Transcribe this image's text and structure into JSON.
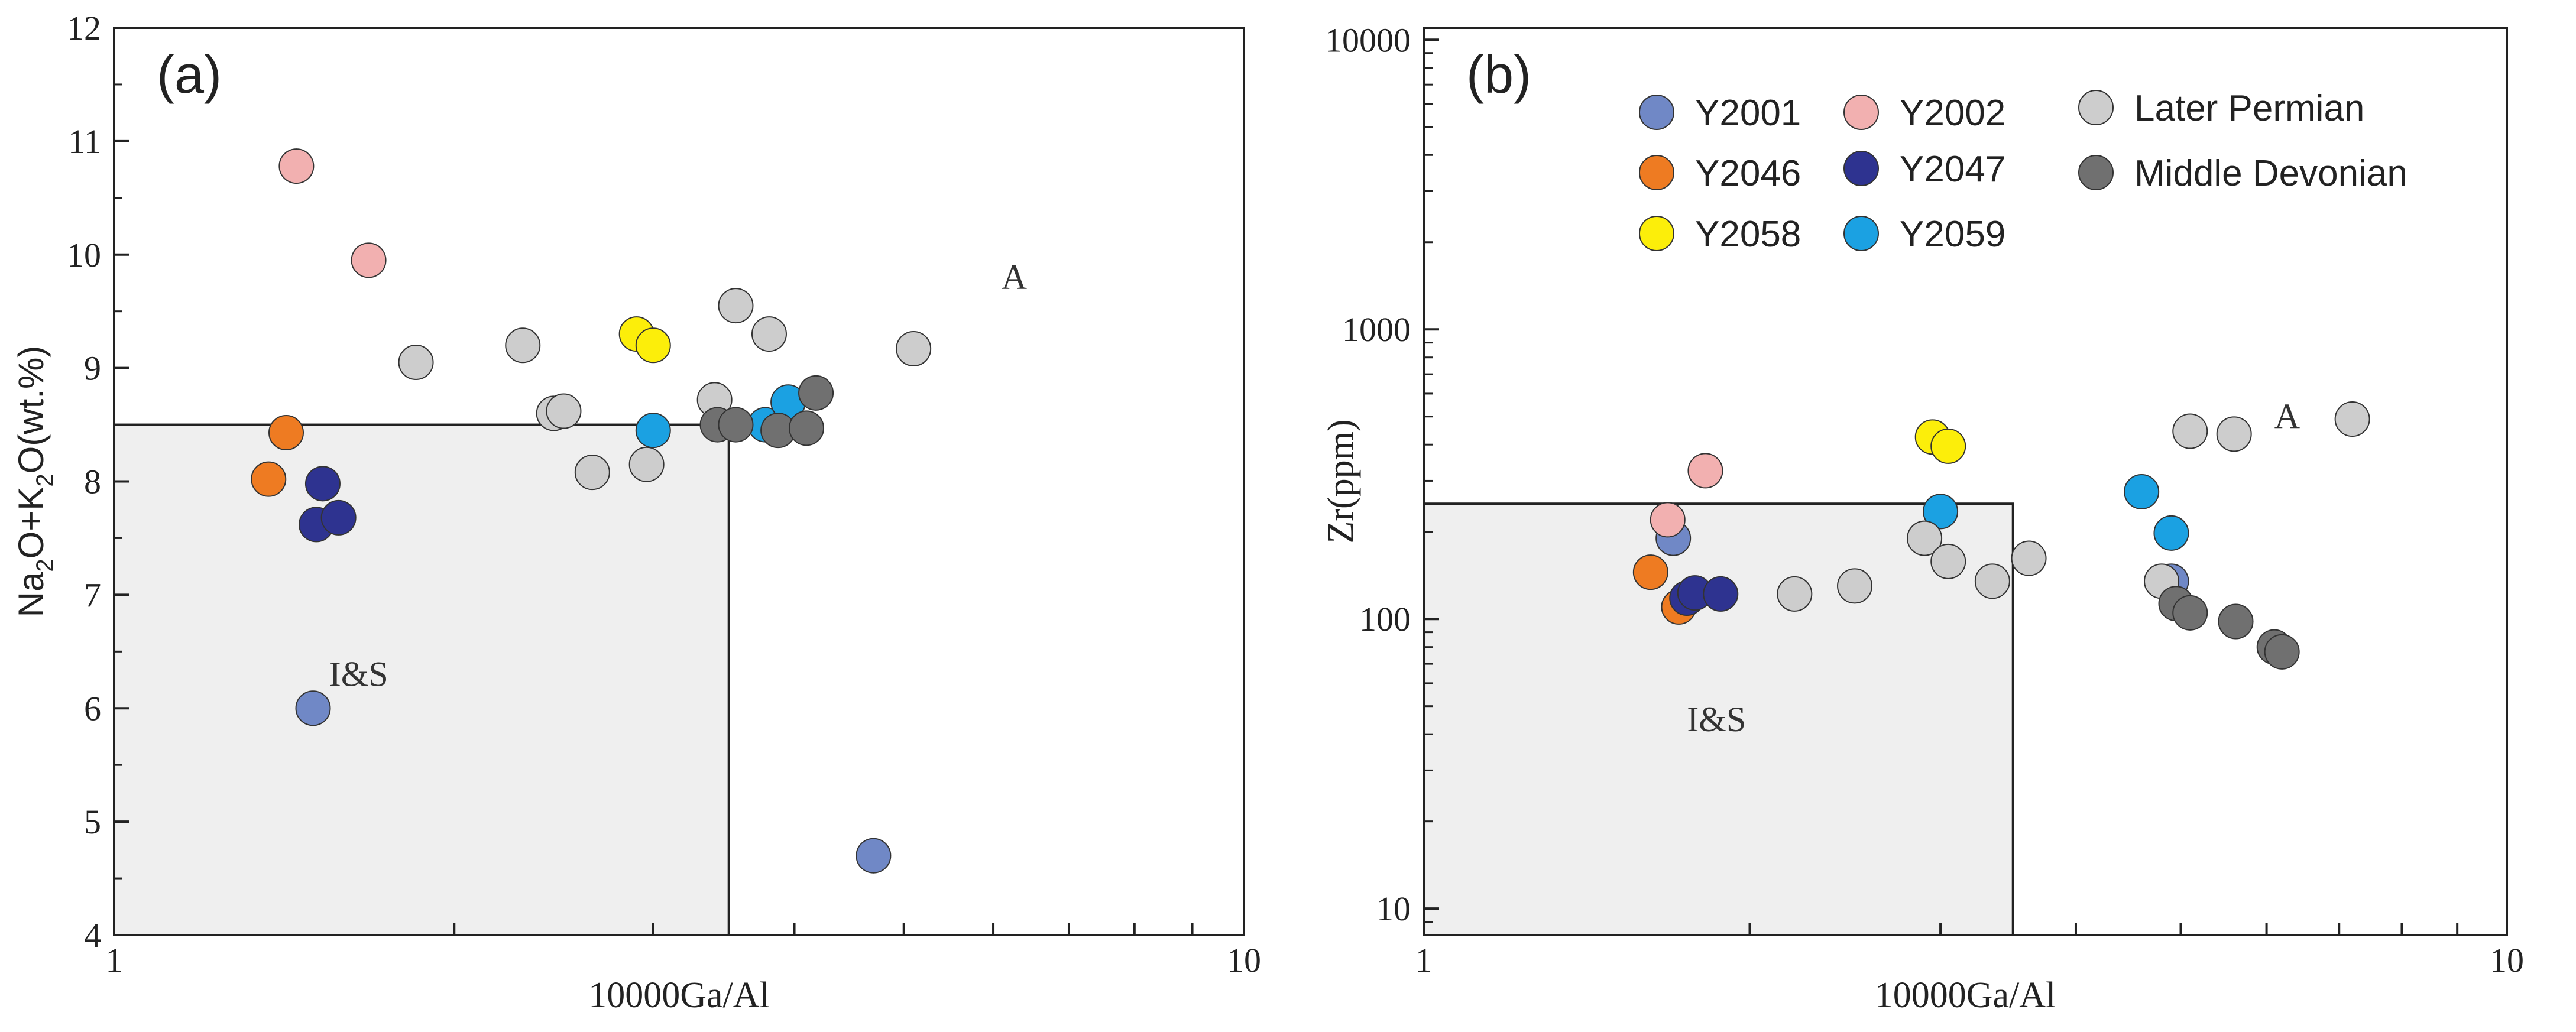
{
  "chart_data": [
    {
      "type": "scatter",
      "panel_label": "(a)",
      "xlabel": "10000Ga/Al",
      "ylabel_parts": [
        "Na",
        "2",
        "O+K",
        "2",
        "O(wt.%)"
      ],
      "x_scale": "log",
      "xlim": [
        1,
        10
      ],
      "x_tick_labels": [
        "1",
        "10"
      ],
      "ylim": [
        4,
        12
      ],
      "y_ticks": [
        "4",
        "5",
        "6",
        "7",
        "8",
        "9",
        "10",
        "11",
        "12"
      ],
      "region": {
        "x_max": 3.5,
        "y_max": 8.5,
        "label": "I&S",
        "label_at": [
          1.55,
          6.3
        ]
      },
      "region_label_outside": {
        "label": "A",
        "at": [
          6.1,
          9.8
        ]
      },
      "series": [
        {
          "name": "Y2001",
          "color": "#7088C6",
          "points": [
            [
              1.5,
              6.0
            ],
            [
              4.7,
              4.7
            ]
          ]
        },
        {
          "name": "Y2002",
          "color": "#F2B0B0",
          "points": [
            [
              1.45,
              10.78
            ],
            [
              1.68,
              9.95
            ]
          ]
        },
        {
          "name": "Y2046",
          "color": "#EE7B22",
          "points": [
            [
              1.42,
              8.43
            ],
            [
              1.37,
              8.02
            ]
          ]
        },
        {
          "name": "Y2047",
          "color": "#2E3390",
          "points": [
            [
              1.53,
              7.98
            ],
            [
              1.51,
              7.62
            ],
            [
              1.58,
              7.68
            ]
          ]
        },
        {
          "name": "Y2058",
          "color": "#FCEE0A",
          "points": [
            [
              2.9,
              9.3
            ],
            [
              3.0,
              9.2
            ]
          ]
        },
        {
          "name": "Y2059",
          "color": "#1BA1E2",
          "points": [
            [
              3.0,
              8.45
            ],
            [
              3.77,
              8.5
            ],
            [
              3.95,
              8.7
            ]
          ]
        },
        {
          "name": "Later Permian",
          "color": "#CDCDCD",
          "points": [
            [
              1.85,
              9.05
            ],
            [
              2.3,
              9.2
            ],
            [
              2.45,
              8.6
            ],
            [
              2.5,
              8.62
            ],
            [
              2.65,
              8.08
            ],
            [
              3.4,
              8.72
            ],
            [
              3.55,
              9.55
            ],
            [
              3.8,
              9.3
            ],
            [
              5.1,
              9.17
            ],
            [
              2.96,
              8.15
            ]
          ]
        },
        {
          "name": "Middle Devonian",
          "color": "#707070",
          "points": [
            [
              3.42,
              8.5
            ],
            [
              3.55,
              8.5
            ],
            [
              3.87,
              8.45
            ],
            [
              4.1,
              8.47
            ],
            [
              4.18,
              8.78
            ]
          ]
        }
      ]
    },
    {
      "type": "scatter",
      "panel_label": "(b)",
      "xlabel": "10000Ga/Al",
      "ylabel": "Zr(ppm)",
      "x_scale": "log",
      "y_scale": "log",
      "xlim": [
        1,
        10
      ],
      "x_tick_labels": [
        "1",
        "10"
      ],
      "ylim": [
        8.1,
        11000
      ],
      "y_ticks": [
        "10",
        "100",
        "1000",
        "10000"
      ],
      "region": {
        "x_max": 3.5,
        "y_max": 250,
        "label": "I&S",
        "label_at": [
          1.75,
          45
        ]
      },
      "region_label_outside": {
        "label": "A",
        "at": [
          6.1,
          500
        ]
      },
      "legend_position": "top",
      "series": [
        {
          "name": "Y2001",
          "color": "#7088C6",
          "points": [
            [
              1.7,
              190
            ],
            [
              4.9,
              135
            ]
          ]
        },
        {
          "name": "Y2002",
          "color": "#F2B0B0",
          "points": [
            [
              1.68,
              220
            ],
            [
              1.82,
              325
            ]
          ]
        },
        {
          "name": "Y2046",
          "color": "#EE7B22",
          "points": [
            [
              1.62,
              145
            ],
            [
              1.72,
              110
            ]
          ]
        },
        {
          "name": "Y2047",
          "color": "#2E3390",
          "points": [
            [
              1.75,
              118
            ],
            [
              1.78,
              123
            ],
            [
              1.88,
              122
            ]
          ]
        },
        {
          "name": "Y2058",
          "color": "#FCEE0A",
          "points": [
            [
              2.95,
              425
            ],
            [
              3.05,
              395
            ]
          ]
        },
        {
          "name": "Y2059",
          "color": "#1BA1E2",
          "points": [
            [
              3.0,
              235
            ],
            [
              4.6,
              275
            ],
            [
              4.9,
              198
            ]
          ]
        },
        {
          "name": "Later Permian",
          "color": "#CDCDCD",
          "points": [
            [
              2.2,
              122
            ],
            [
              2.5,
              130
            ],
            [
              2.9,
              190
            ],
            [
              3.05,
              158
            ],
            [
              3.35,
              135
            ],
            [
              3.62,
              162
            ],
            [
              4.8,
              135
            ],
            [
              5.1,
              445
            ],
            [
              5.6,
              435
            ],
            [
              7.2,
              490
            ]
          ]
        },
        {
          "name": "Middle Devonian",
          "color": "#707070",
          "points": [
            [
              4.95,
              113
            ],
            [
              5.1,
              105
            ],
            [
              5.62,
              98
            ],
            [
              6.1,
              80
            ],
            [
              6.2,
              77
            ]
          ]
        }
      ]
    }
  ]
}
